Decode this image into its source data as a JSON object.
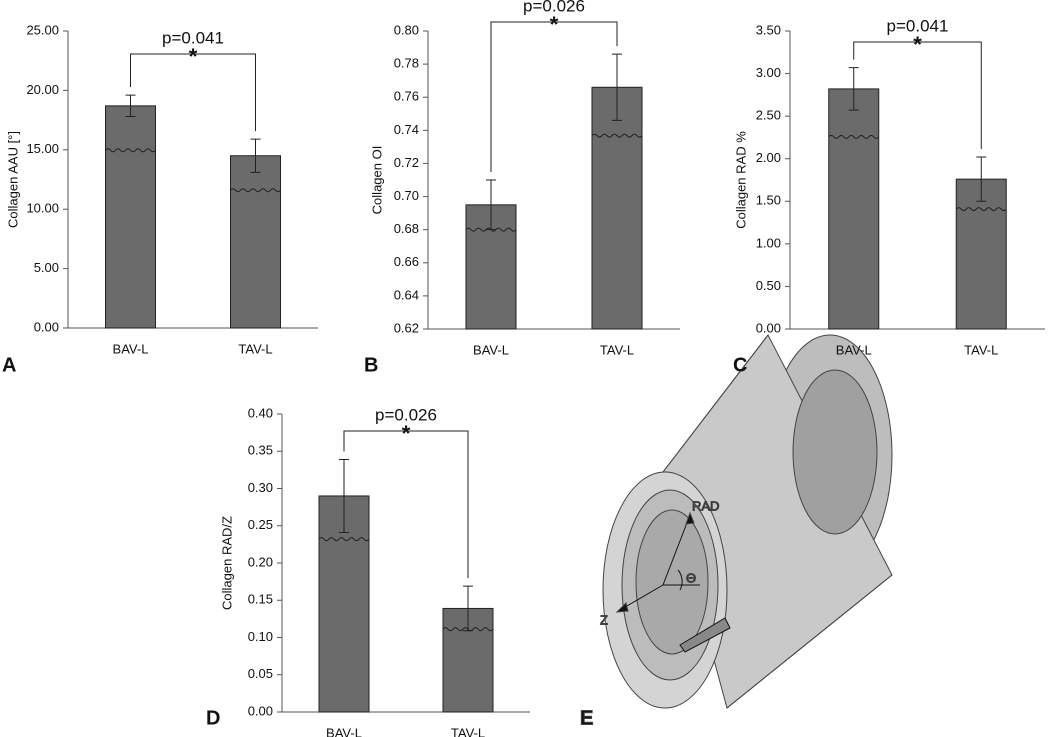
{
  "chart_data": [
    {
      "type": "bar",
      "panel_label": "A",
      "ylabel": "Collagen AAU [°]",
      "categories": [
        "BAV-L",
        "TAV-L"
      ],
      "values": [
        18.7,
        14.5
      ],
      "errors": [
        0.9,
        1.4
      ],
      "color": "#6b6b6b",
      "ylim": [
        0,
        25
      ],
      "yticks": [
        {
          "value": 0,
          "label": "0.00"
        },
        {
          "value": 5,
          "label": "5.00"
        },
        {
          "value": 10,
          "label": "10.00"
        },
        {
          "value": 15,
          "label": "15.00"
        },
        {
          "value": 20,
          "label": "20.00"
        },
        {
          "value": 25,
          "label": "25.00"
        }
      ],
      "p_label": "p=0.041",
      "star": "*"
    },
    {
      "type": "bar",
      "panel_label": "B",
      "ylabel": "Collagen OI",
      "categories": [
        "BAV-L",
        "TAV-L"
      ],
      "values": [
        0.695,
        0.766
      ],
      "errors": [
        0.015,
        0.02
      ],
      "color": "#6b6b6b",
      "ylim": [
        0.62,
        0.8
      ],
      "yticks": [
        0.62,
        0.64,
        0.66,
        0.68,
        {
          "value": 0.7,
          "label": "0.70"
        },
        0.72,
        0.74,
        0.76,
        0.78,
        {
          "value": 0.8,
          "label": "0.80"
        }
      ],
      "p_label": "p=0.026",
      "star": "*"
    },
    {
      "type": "bar",
      "panel_label": "C",
      "ylabel": "Collagen RAD %",
      "categories": [
        "BAV-L",
        "TAV-L"
      ],
      "values": [
        2.82,
        1.76
      ],
      "errors": [
        0.25,
        0.26
      ],
      "color": "#6b6b6b",
      "ylim": [
        0,
        3.5
      ],
      "yticks": [
        {
          "value": 0,
          "label": "0.00"
        },
        {
          "value": 0.5,
          "label": "0.50"
        },
        {
          "value": 1,
          "label": "1.00"
        },
        {
          "value": 1.5,
          "label": "1.50"
        },
        {
          "value": 2,
          "label": "2.00"
        },
        {
          "value": 2.5,
          "label": "2.50"
        },
        {
          "value": 3,
          "label": "3.00"
        },
        {
          "value": 3.5,
          "label": "3.50"
        }
      ],
      "p_label": "p=0.041",
      "star": "*"
    },
    {
      "type": "bar",
      "panel_label": "D",
      "ylabel": "Collagen RAD/Z",
      "categories": [
        "BAV-L",
        "TAV-L"
      ],
      "values": [
        0.29,
        0.139
      ],
      "errors": [
        0.049,
        0.03
      ],
      "color": "#6b6b6b",
      "ylim": [
        0,
        0.4
      ],
      "yticks": [
        {
          "value": 0,
          "label": "0.00"
        },
        0.05,
        {
          "value": 0.1,
          "label": "0.10"
        },
        0.15,
        {
          "value": 0.2,
          "label": "0.20"
        },
        0.25,
        {
          "value": 0.3,
          "label": "0.30"
        },
        0.35,
        {
          "value": 0.4,
          "label": "0.40"
        }
      ],
      "p_label": "p=0.026",
      "star": "*"
    }
  ],
  "diagram": {
    "panel_label": "E",
    "rad": "RAD",
    "theta": "Θ",
    "z": "Z"
  }
}
